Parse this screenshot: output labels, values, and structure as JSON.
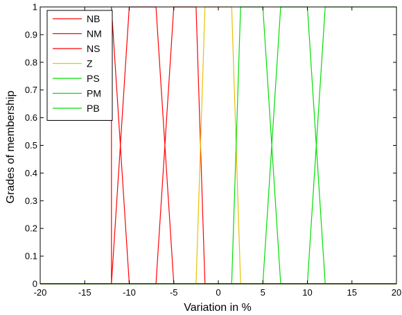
{
  "chart_data": {
    "type": "line",
    "xlabel": "Variation in %",
    "ylabel": "Grades of membership",
    "xlim": [
      -20,
      20
    ],
    "ylim": [
      0,
      1
    ],
    "xticks": [
      "-20",
      "-15",
      "-10",
      "-5",
      "0",
      "5",
      "10",
      "15",
      "20"
    ],
    "yticks": [
      "0",
      "0.1",
      "0.2",
      "0.3",
      "0.4",
      "0.5",
      "0.6",
      "0.7",
      "0.8",
      "0.9",
      "1"
    ],
    "grid": false,
    "legend_position": "top-left",
    "series": [
      {
        "name": "NB",
        "color": "#ff0000",
        "points": [
          [
            -20,
            0
          ],
          [
            -12,
            0
          ],
          [
            -12,
            1
          ],
          [
            -12,
            1
          ],
          [
            -10,
            0
          ],
          [
            -10,
            0
          ],
          [
            20,
            0
          ]
        ]
      },
      {
        "name": "NM",
        "color": "#ff0000",
        "points": [
          [
            -20,
            0
          ],
          [
            -12,
            0
          ],
          [
            -10,
            1
          ],
          [
            -7,
            1
          ],
          [
            -5,
            0
          ],
          [
            20,
            0
          ]
        ]
      },
      {
        "name": "NS",
        "color": "#ff0000",
        "points": [
          [
            -20,
            0
          ],
          [
            -7,
            0
          ],
          [
            -5,
            1
          ],
          [
            -2.5,
            1
          ],
          [
            -1.5,
            0
          ],
          [
            20,
            0
          ]
        ]
      },
      {
        "name": "Z",
        "color": "#e8c000",
        "points": [
          [
            -20,
            0
          ],
          [
            -2.5,
            0
          ],
          [
            -1.5,
            1
          ],
          [
            1.5,
            1
          ],
          [
            2.5,
            0
          ],
          [
            20,
            0
          ]
        ]
      },
      {
        "name": "PS",
        "color": "#00dd00",
        "points": [
          [
            -20,
            0
          ],
          [
            1.5,
            0
          ],
          [
            2.5,
            1
          ],
          [
            5,
            1
          ],
          [
            7,
            0
          ],
          [
            20,
            0
          ]
        ]
      },
      {
        "name": "PM",
        "color": "#00dd00",
        "points": [
          [
            -20,
            0
          ],
          [
            5,
            0
          ],
          [
            7,
            1
          ],
          [
            10,
            1
          ],
          [
            12,
            0
          ],
          [
            20,
            0
          ]
        ]
      },
      {
        "name": "PB",
        "color": "#00dd00",
        "points": [
          [
            -20,
            0
          ],
          [
            10,
            0
          ],
          [
            12,
            1
          ],
          [
            20,
            1
          ]
        ]
      }
    ]
  }
}
